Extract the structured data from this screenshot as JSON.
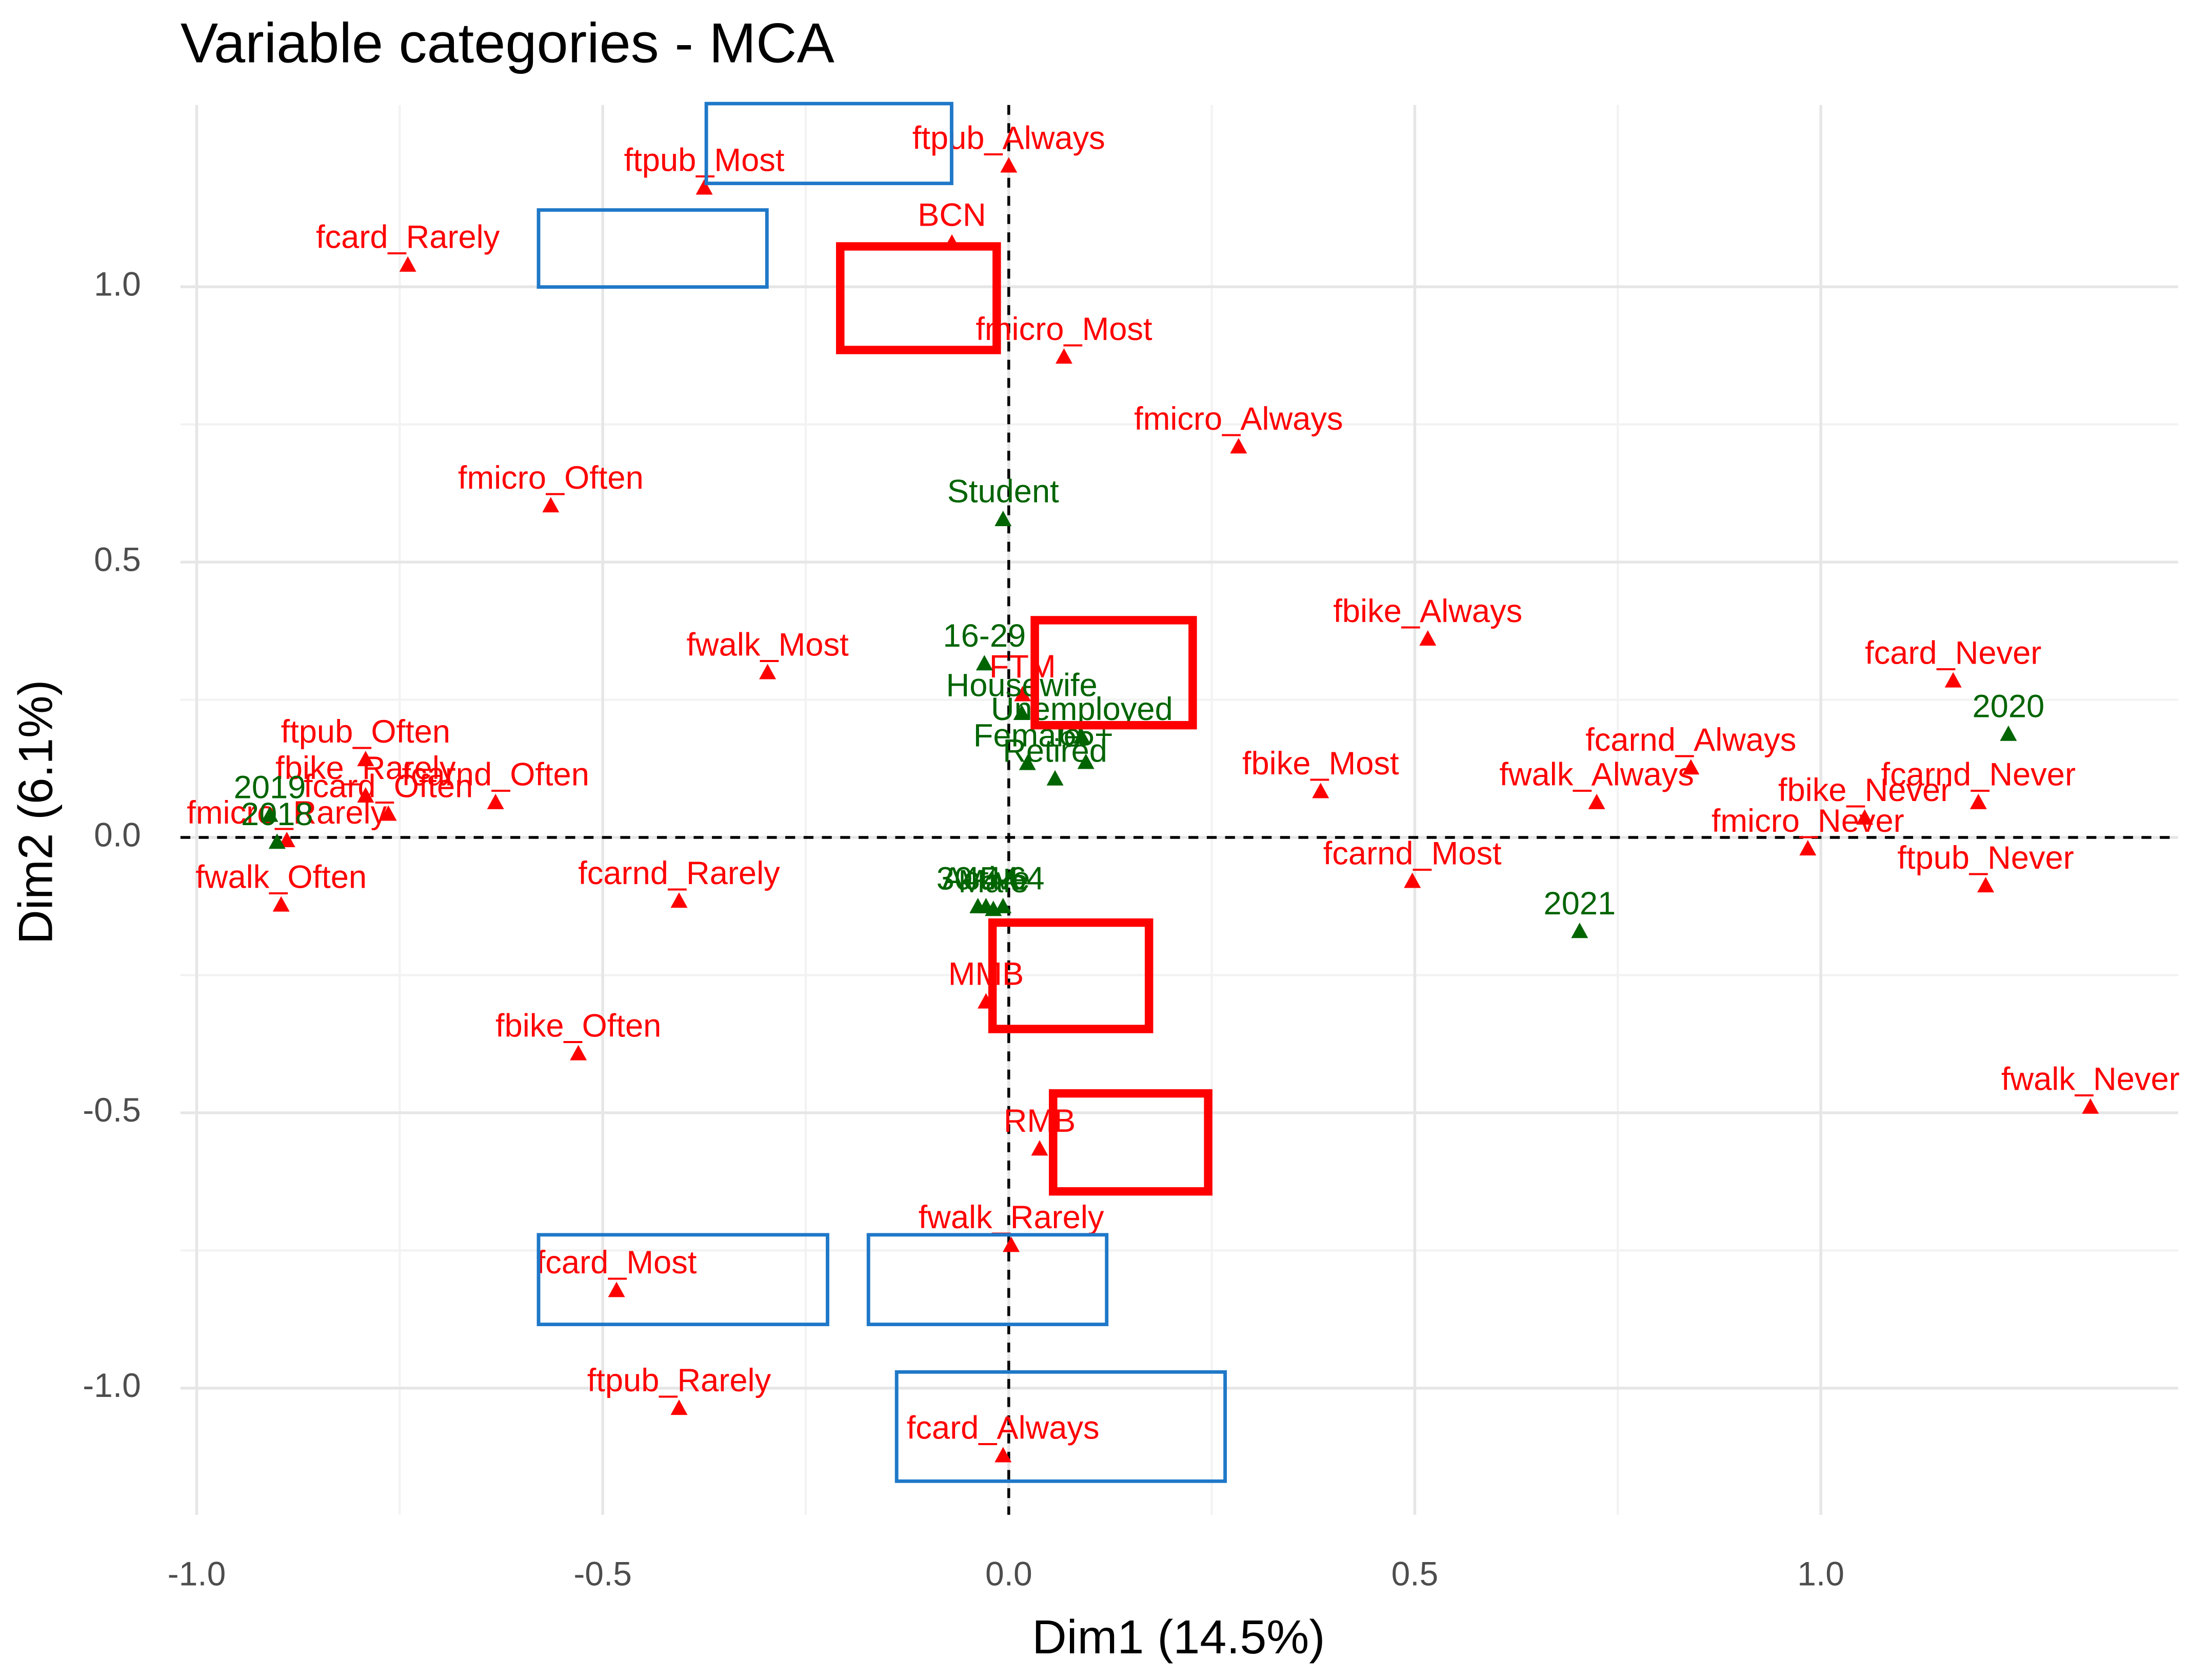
{
  "chart_data": {
    "type": "scatter",
    "title": "Variable categories - MCA",
    "x_label": "Dim1 (14.5%)",
    "y_label": "Dim2 (6.1%)",
    "xlim": [
      -1.02,
      1.44
    ],
    "ylim": [
      -1.23,
      1.33
    ],
    "xticks": [
      {
        "value": -1,
        "label": "-1.0"
      },
      -0.5,
      {
        "value": 0,
        "label": "0.0"
      },
      0.5,
      {
        "value": 1,
        "label": "1.0"
      }
    ],
    "yticks": [
      {
        "value": -1,
        "label": "-1.0"
      },
      -0.5,
      {
        "value": 0,
        "label": "0.0"
      },
      0.5,
      {
        "value": 1,
        "label": "1.0"
      }
    ],
    "grid": true,
    "series": [
      {
        "color": "#ff0000",
        "labels": [
          "ftpub_Always",
          "ftpub_Most",
          "BCN",
          "fcard_Rarely",
          "fmicro_Most",
          "fmicro_Always",
          "fmicro_Often",
          "fwalk_Most",
          "fbike_Always",
          "FTM",
          "ftpub_Often",
          "fbike_Rarely",
          "fcarnd_Often",
          "fcard_Often",
          "fmicro_Rarely",
          "fwalk_Often",
          "fcarnd_Rarely",
          "fbike_Most",
          "fwalk_Always",
          "fcarnd_Always",
          "fbike_Never",
          "fcard_Never",
          "fcarnd_Never",
          "fmicro_Never",
          "fcarnd_Most",
          "ftpub_Never",
          "fwalk_Never",
          "MMB",
          "RMB",
          "fbike_Often",
          "fcard_Most",
          "fwalk_Rarely",
          "ftpub_Rarely",
          "fcard_Always"
        ],
        "x": [
          0.0,
          -0.375,
          -0.07,
          -0.74,
          0.068,
          0.283,
          -0.564,
          -0.297,
          0.516,
          0.017,
          -0.792,
          -0.792,
          -0.632,
          -0.764,
          -0.889,
          -0.896,
          -0.406,
          0.384,
          0.724,
          0.84,
          1.054,
          1.163,
          1.194,
          0.984,
          0.497,
          1.203,
          1.332,
          -0.028,
          0.038,
          -0.53,
          -0.483,
          0.003,
          -0.406,
          -0.007
        ],
        "y": [
          1.22,
          1.18,
          1.08,
          1.04,
          0.873,
          0.71,
          0.603,
          0.3,
          0.361,
          0.26,
          0.142,
          0.076,
          0.064,
          0.043,
          -0.005,
          -0.122,
          -0.115,
          0.084,
          0.064,
          0.127,
          0.036,
          0.285,
          0.064,
          -0.02,
          -0.079,
          -0.087,
          -0.489,
          -0.298,
          -0.565,
          -0.392,
          -0.822,
          -0.74,
          -1.036,
          -1.122
        ]
      },
      {
        "color": "#006400",
        "labels": [
          "Student",
          "16-29",
          "Unemployed",
          "Housewife",
          "65+",
          "Female",
          "Retired",
          "2019",
          "2018",
          "Active",
          "45-64",
          "30-44",
          "Male",
          "2021",
          "2020"
        ],
        "x": [
          -0.007,
          -0.03,
          0.09,
          0.016,
          0.095,
          0.023,
          0.057,
          -0.91,
          -0.901,
          -0.028,
          -0.007,
          -0.038,
          -0.019,
          0.703,
          1.231
        ],
        "y": [
          0.578,
          0.316,
          0.183,
          0.226,
          0.137,
          0.135,
          0.107,
          0.041,
          -0.008,
          -0.125,
          -0.125,
          -0.125,
          -0.13,
          -0.17,
          0.188
        ]
      }
    ]
  }
}
